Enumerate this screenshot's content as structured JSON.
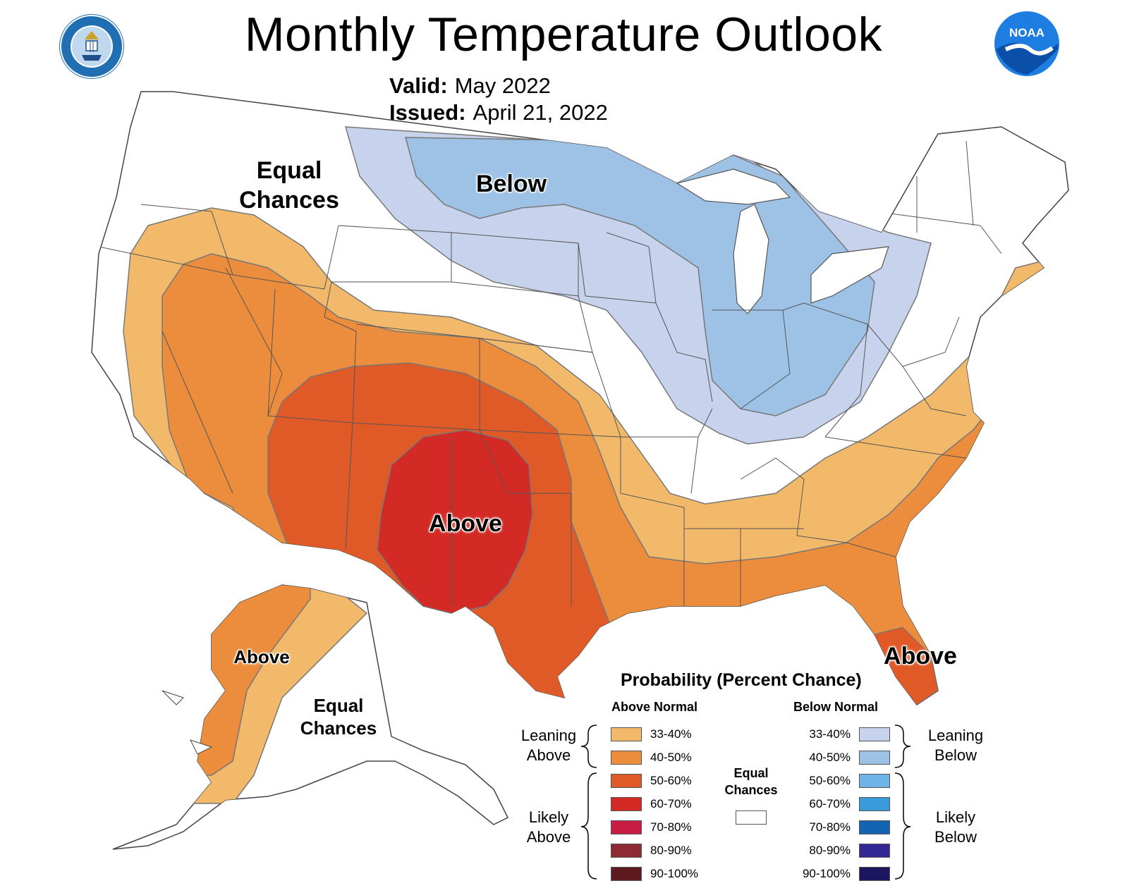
{
  "title": "Monthly Temperature Outlook",
  "valid": {
    "label": "Valid:",
    "value": "May 2022"
  },
  "issued": {
    "label": "Issued:",
    "value": "April 21, 2022"
  },
  "noaa_logo_text": "NOAA",
  "map_labels": {
    "conus_equal": [
      "Equal",
      "Chances"
    ],
    "conus_below": "Below",
    "conus_above": "Above",
    "alaska_above": "Above",
    "alaska_equal": [
      "Equal",
      "Chances"
    ],
    "florida_above": "Above"
  },
  "legend": {
    "title": "Probability (Percent Chance)",
    "above_header": "Above Normal",
    "below_header": "Below Normal",
    "leaning_above": [
      "Leaning",
      "Above"
    ],
    "likely_above": [
      "Likely",
      "Above"
    ],
    "leaning_below": [
      "Leaning",
      "Below"
    ],
    "likely_below": [
      "Likely",
      "Below"
    ],
    "equal_chances": [
      "Equal",
      "Chances"
    ],
    "above_items": [
      {
        "label": "33-40%",
        "color": "#F2B96B"
      },
      {
        "label": "40-50%",
        "color": "#EB8D3C"
      },
      {
        "label": "50-60%",
        "color": "#E05A28"
      },
      {
        "label": "60-70%",
        "color": "#D42A26"
      },
      {
        "label": "70-80%",
        "color": "#C81E44"
      },
      {
        "label": "80-90%",
        "color": "#8E2A33"
      },
      {
        "label": "90-100%",
        "color": "#5C1A1F"
      }
    ],
    "below_items": [
      {
        "label": "33-40%",
        "color": "#C7D3EC"
      },
      {
        "label": "40-50%",
        "color": "#9DC2E6"
      },
      {
        "label": "50-60%",
        "color": "#6FB4E8"
      },
      {
        "label": "60-70%",
        "color": "#3A9BDA"
      },
      {
        "label": "70-80%",
        "color": "#1464B4"
      },
      {
        "label": "80-90%",
        "color": "#332893"
      },
      {
        "label": "90-100%",
        "color": "#1C1560"
      }
    ],
    "equal_color": "#FFFFFF"
  }
}
